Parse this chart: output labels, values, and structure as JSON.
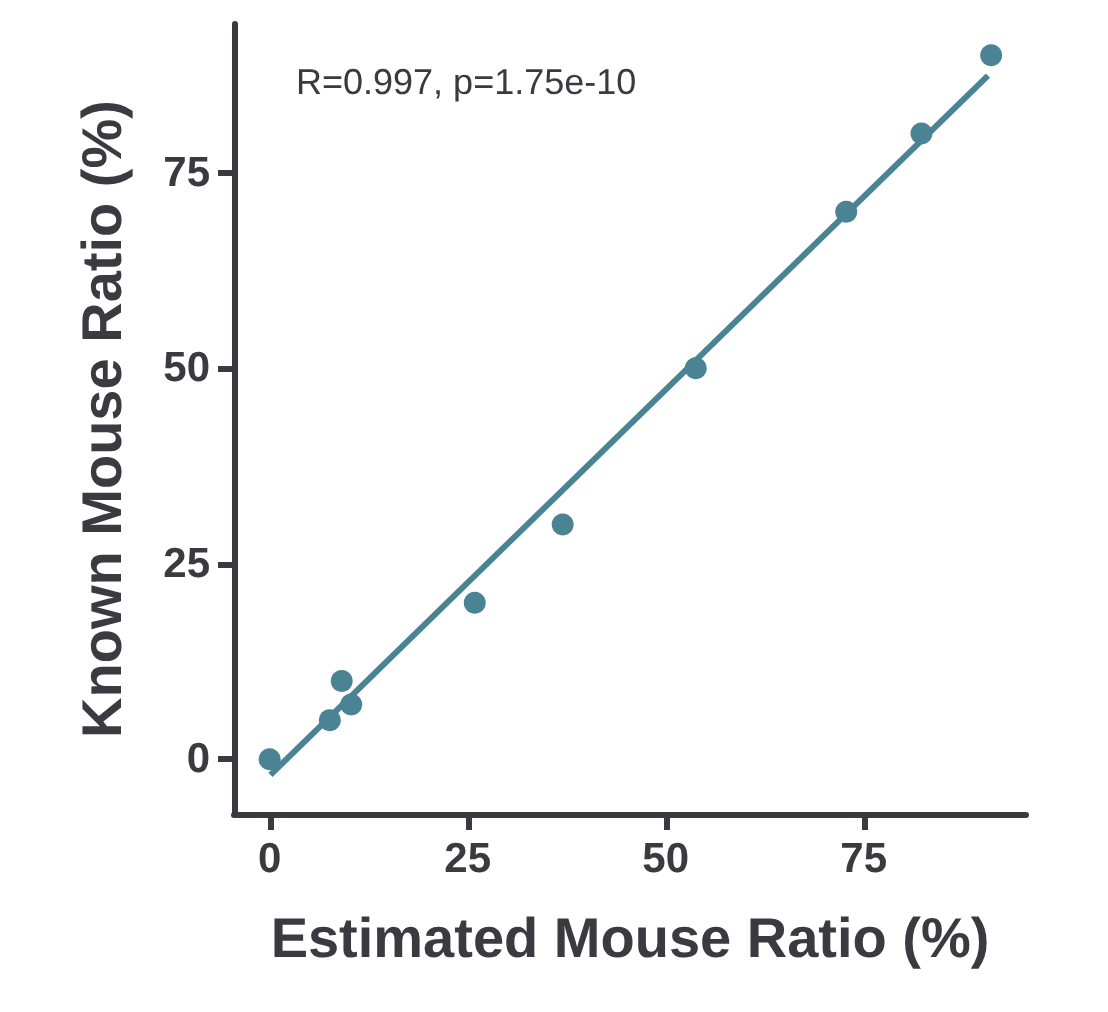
{
  "chart_data": {
    "type": "scatter",
    "xlabel": "Estimated Mouse Ratio (%)",
    "ylabel": "Known Mouse Ratio (%)",
    "annotations": [
      "R=0.997, p=1.75e-10"
    ],
    "xlim": [
      -4.5,
      95.5
    ],
    "xticks": [
      0,
      25,
      50,
      75
    ],
    "ylim": [
      -7,
      94
    ],
    "yticks": [
      0,
      25,
      50,
      75
    ],
    "grid": false,
    "marker": "circle",
    "series": [
      {
        "color": "#4a8394",
        "x": [
          0,
          7.6,
          9.1,
          10.3,
          25.9,
          37,
          53.8,
          72.8,
          82.3,
          91.1
        ],
        "values": [
          0,
          5,
          10,
          7,
          20,
          30,
          50,
          70,
          80,
          90
        ]
      },
      {
        "type": "line",
        "color": "#4a8394",
        "marker": "none",
        "line_style": "solid",
        "x": [
          0.1,
          90.7
        ],
        "values": [
          -2,
          87.4
        ]
      }
    ]
  }
}
